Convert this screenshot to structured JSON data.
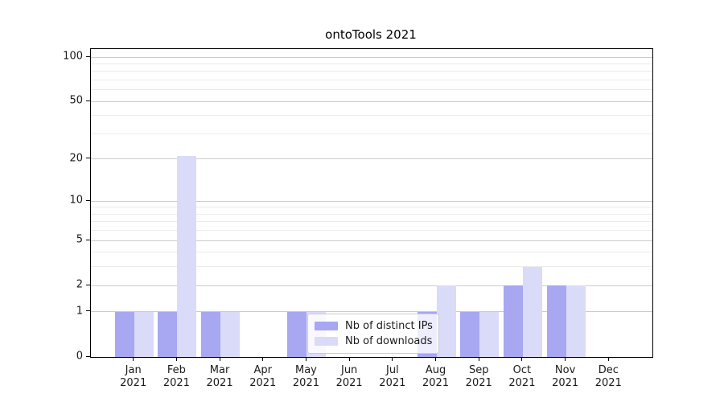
{
  "chart_data": {
    "type": "bar",
    "title": "ontoTools 2021",
    "categories": [
      "Jan",
      "Feb",
      "Mar",
      "Apr",
      "May",
      "Jun",
      "Jul",
      "Aug",
      "Sep",
      "Oct",
      "Nov",
      "Dec"
    ],
    "category_year_label": "2021",
    "series": [
      {
        "name": "Nb of distinct IPs",
        "color": "#a7a7f2",
        "values": [
          1,
          1,
          1,
          0,
          1,
          0,
          0,
          1,
          1,
          2,
          2,
          0
        ]
      },
      {
        "name": "Nb of downloads",
        "color": "#dadaf9",
        "values": [
          1,
          21,
          1,
          0,
          1,
          0,
          0,
          2,
          1,
          3,
          2,
          0
        ]
      }
    ],
    "y_axis": {
      "scale": "symlog",
      "major_tick_labels": [
        0,
        1,
        2,
        5,
        10,
        20,
        50,
        100
      ],
      "minor_ticks": [
        3,
        4,
        6,
        7,
        8,
        9,
        30,
        40,
        60,
        70,
        80,
        90
      ],
      "ylim": [
        0,
        113
      ]
    },
    "legend_position": "lower-center",
    "grid": "on"
  },
  "colors": {
    "major_gridline": "#cccccc",
    "minor_gridline": "#ebebeb",
    "axis_spine": "#000000",
    "text": "#1a1a1a"
  }
}
